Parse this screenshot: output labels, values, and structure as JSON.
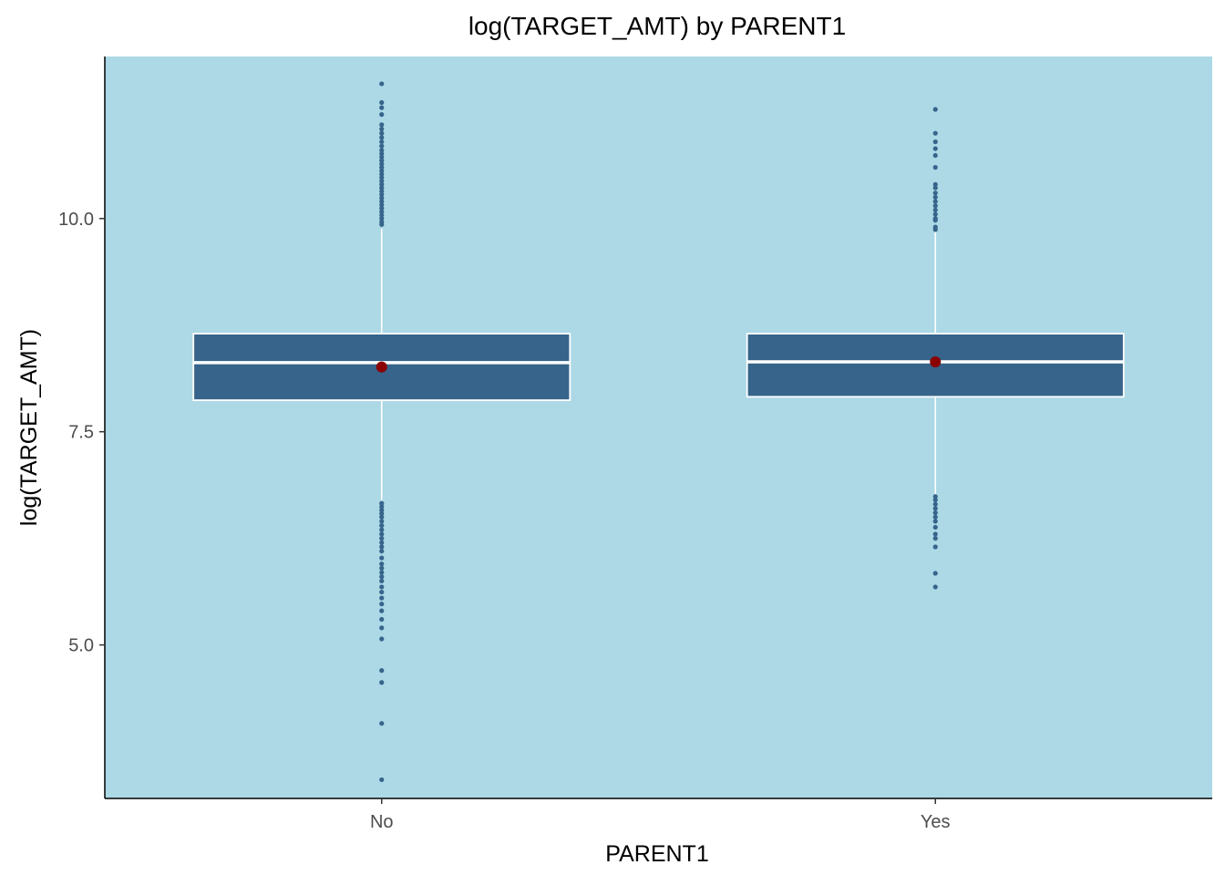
{
  "chart_data": {
    "type": "boxplot",
    "title": "log(TARGET_AMT) by PARENT1",
    "xlabel": "PARENT1",
    "ylabel": "log(TARGET_AMT)",
    "ylim": [
      3.2,
      11.9
    ],
    "yticks": [
      5.0,
      7.5,
      10.0
    ],
    "ytick_labels": [
      "5.0",
      "7.5",
      "10.0"
    ],
    "grid": false,
    "legend": "none",
    "categories": [
      "No",
      "Yes"
    ],
    "boxes": [
      {
        "category": "No",
        "whisker_low": 6.7,
        "q1": 7.87,
        "median": 8.31,
        "q3": 8.65,
        "whisker_high": 9.88,
        "mean": 8.26,
        "outliers": [
          11.58,
          11.36,
          11.3,
          11.22,
          11.1,
          11.05,
          11.0,
          10.95,
          10.9,
          10.85,
          10.8,
          10.76,
          10.72,
          10.68,
          10.64,
          10.6,
          10.56,
          10.52,
          10.48,
          10.44,
          10.4,
          10.36,
          10.32,
          10.28,
          10.24,
          10.2,
          10.16,
          10.12,
          10.08,
          10.04,
          10.0,
          9.96,
          9.93,
          6.66,
          6.62,
          6.58,
          6.54,
          6.5,
          6.45,
          6.4,
          6.35,
          6.3,
          6.25,
          6.2,
          6.15,
          6.1,
          6.02,
          5.95,
          5.9,
          5.85,
          5.8,
          5.75,
          5.68,
          5.62,
          5.55,
          5.48,
          5.4,
          5.3,
          5.2,
          5.07,
          4.7,
          4.56,
          4.08,
          3.42
        ]
      },
      {
        "category": "Yes",
        "whisker_low": 6.75,
        "q1": 7.91,
        "median": 8.32,
        "q3": 8.65,
        "whisker_high": 9.85,
        "mean": 8.32,
        "outliers": [
          11.28,
          11.0,
          10.9,
          10.82,
          10.74,
          10.6,
          10.4,
          10.36,
          10.3,
          10.25,
          10.2,
          10.15,
          10.1,
          10.05,
          10.0,
          9.98,
          9.9,
          9.87,
          6.74,
          6.7,
          6.65,
          6.6,
          6.55,
          6.5,
          6.45,
          6.38,
          6.3,
          6.25,
          6.15,
          5.84,
          5.68
        ]
      }
    ],
    "colors": {
      "panel_background": "#add8e6",
      "box_fill": "#36648b",
      "box_border": "#ffffff",
      "whisker": "#ffffff",
      "outlier": "#36648b",
      "mean_point": "#8b0000",
      "axis_line": "#000000"
    }
  }
}
